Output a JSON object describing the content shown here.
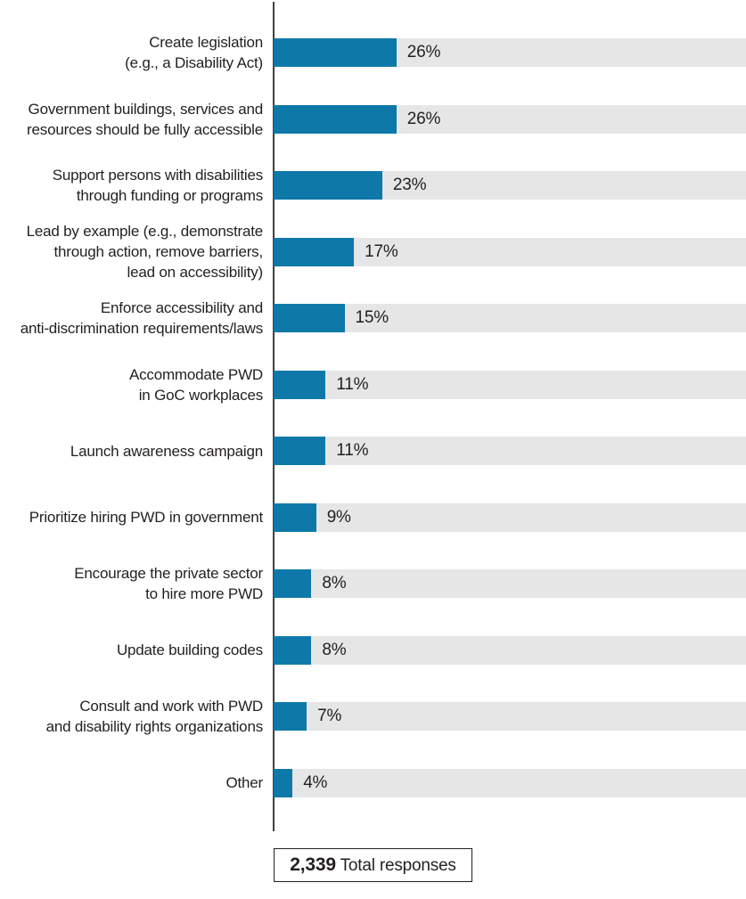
{
  "chart_data": {
    "type": "bar",
    "orientation": "horizontal",
    "value_unit": "%",
    "axis_range": [
      0,
      100
    ],
    "grid": false,
    "legend": false,
    "bar_color": "#0E79A9",
    "track_color": "#E6E6E7",
    "axis_color": "#414042",
    "text_color": "#231F20",
    "rows": [
      {
        "label": "Create legislation\n(e.g., a Disability Act)",
        "value": 26,
        "pct_label": "26%"
      },
      {
        "label": "Government buildings, services and\nresources should be fully accessible",
        "value": 26,
        "pct_label": "26%"
      },
      {
        "label": "Support persons with disabilities\nthrough funding or programs",
        "value": 23,
        "pct_label": "23%"
      },
      {
        "label": "Lead by example (e.g., demonstrate\nthrough action, remove barriers,\nlead on accessibility)",
        "value": 17,
        "pct_label": "17%"
      },
      {
        "label": "Enforce accessibility and\nanti-discrimination requirements/laws",
        "value": 15,
        "pct_label": "15%"
      },
      {
        "label": "Accommodate PWD\nin GoC workplaces",
        "value": 11,
        "pct_label": "11%"
      },
      {
        "label": "Launch awareness campaign",
        "value": 11,
        "pct_label": "11%"
      },
      {
        "label": "Prioritize hiring PWD in government",
        "value": 9,
        "pct_label": "9%"
      },
      {
        "label": "Encourage the private sector\nto hire more PWD",
        "value": 8,
        "pct_label": "8%"
      },
      {
        "label": "Update building codes",
        "value": 8,
        "pct_label": "8%"
      },
      {
        "label": "Consult and work with PWD\nand disability rights organizations",
        "value": 7,
        "pct_label": "7%"
      },
      {
        "label": "Other",
        "value": 4,
        "pct_label": "4%"
      }
    ],
    "total": {
      "count": "2,339",
      "label": "Total responses"
    }
  }
}
